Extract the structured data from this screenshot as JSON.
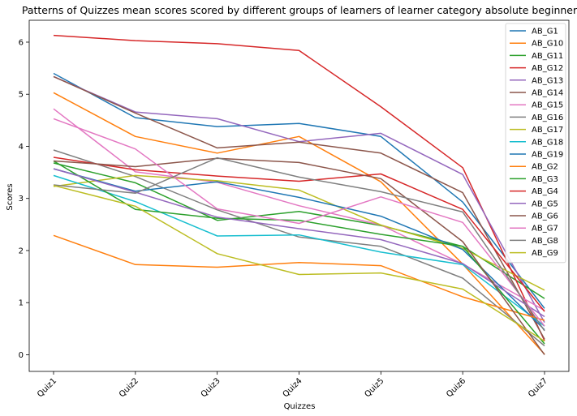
{
  "chart_data": {
    "type": "line",
    "title": "Patterns of Quizzes mean scores scored by different groups of learners of learner category absolute beginner",
    "xlabel": "Quizzes",
    "ylabel": "Scores",
    "categories": [
      "Quiz1",
      "Quiz2",
      "Quiz3",
      "Quiz4",
      "Quiz5",
      "Quiz6",
      "Quiz7"
    ],
    "ylim": [
      -0.32,
      6.42
    ],
    "yticks": [
      0,
      1,
      2,
      3,
      4,
      5,
      6
    ],
    "grid": false,
    "legend_position": "top-right",
    "series": [
      {
        "name": "AB_G1",
        "color": "#1f77b4",
        "values": [
          5.4,
          4.55,
          4.38,
          4.44,
          4.19,
          2.93,
          0.89
        ]
      },
      {
        "name": "AB_G10",
        "color": "#ff7f0e",
        "values": [
          5.03,
          4.19,
          3.87,
          4.19,
          3.32,
          1.74,
          0.01
        ]
      },
      {
        "name": "AB_G11",
        "color": "#2ca02c",
        "values": [
          3.68,
          3.3,
          2.58,
          2.75,
          2.48,
          2.08,
          1.08
        ]
      },
      {
        "name": "AB_G12",
        "color": "#d62728",
        "values": [
          6.13,
          6.03,
          5.97,
          5.84,
          4.76,
          3.59,
          0.27
        ]
      },
      {
        "name": "AB_G13",
        "color": "#9467bd",
        "values": [
          5.34,
          4.66,
          4.53,
          4.09,
          4.25,
          3.46,
          0.62
        ]
      },
      {
        "name": "AB_G14",
        "color": "#8c564b",
        "values": [
          5.34,
          4.64,
          3.97,
          4.08,
          3.87,
          3.11,
          0.3
        ]
      },
      {
        "name": "AB_G15",
        "color": "#e377c2",
        "values": [
          4.72,
          3.51,
          3.31,
          2.86,
          2.49,
          1.74,
          0.85
        ]
      },
      {
        "name": "AB_G16",
        "color": "#7f7f7f",
        "values": [
          3.93,
          3.42,
          2.78,
          2.26,
          2.08,
          1.47,
          0.17
        ]
      },
      {
        "name": "AB_G17",
        "color": "#bcbd22",
        "values": [
          3.23,
          3.44,
          3.34,
          3.16,
          2.49,
          2.04,
          1.24
        ]
      },
      {
        "name": "AB_G18",
        "color": "#17becf",
        "values": [
          3.44,
          2.94,
          2.28,
          2.3,
          1.97,
          1.73,
          0.55
        ]
      },
      {
        "name": "AB_G19",
        "color": "#1f77b4",
        "values": [
          3.57,
          3.14,
          3.32,
          3.02,
          2.66,
          2.02,
          0.48
        ]
      },
      {
        "name": "AB_G2",
        "color": "#ff7f0e",
        "values": [
          2.29,
          1.73,
          1.68,
          1.77,
          1.71,
          1.11,
          0.66
        ]
      },
      {
        "name": "AB_G3",
        "color": "#2ca02c",
        "values": [
          3.72,
          2.79,
          2.62,
          2.58,
          2.31,
          2.08,
          0.21
        ]
      },
      {
        "name": "AB_G4",
        "color": "#d62728",
        "values": [
          3.79,
          3.55,
          3.43,
          3.33,
          3.47,
          2.79,
          0.83
        ]
      },
      {
        "name": "AB_G5",
        "color": "#9467bd",
        "values": [
          3.57,
          3.12,
          2.64,
          2.42,
          2.21,
          1.75,
          0.73
        ]
      },
      {
        "name": "AB_G6",
        "color": "#8c564b",
        "values": [
          3.72,
          3.61,
          3.77,
          3.69,
          3.38,
          2.17,
          0.0
        ]
      },
      {
        "name": "AB_G7",
        "color": "#e377c2",
        "values": [
          4.53,
          3.95,
          2.8,
          2.52,
          3.03,
          2.54,
          0.55
        ]
      },
      {
        "name": "AB_G8",
        "color": "#7f7f7f",
        "values": [
          3.26,
          3.1,
          3.78,
          3.41,
          3.13,
          2.74,
          0.46
        ]
      },
      {
        "name": "AB_G9",
        "color": "#bcbd22",
        "values": [
          3.25,
          2.85,
          1.94,
          1.54,
          1.57,
          1.26,
          0.26
        ]
      }
    ]
  }
}
